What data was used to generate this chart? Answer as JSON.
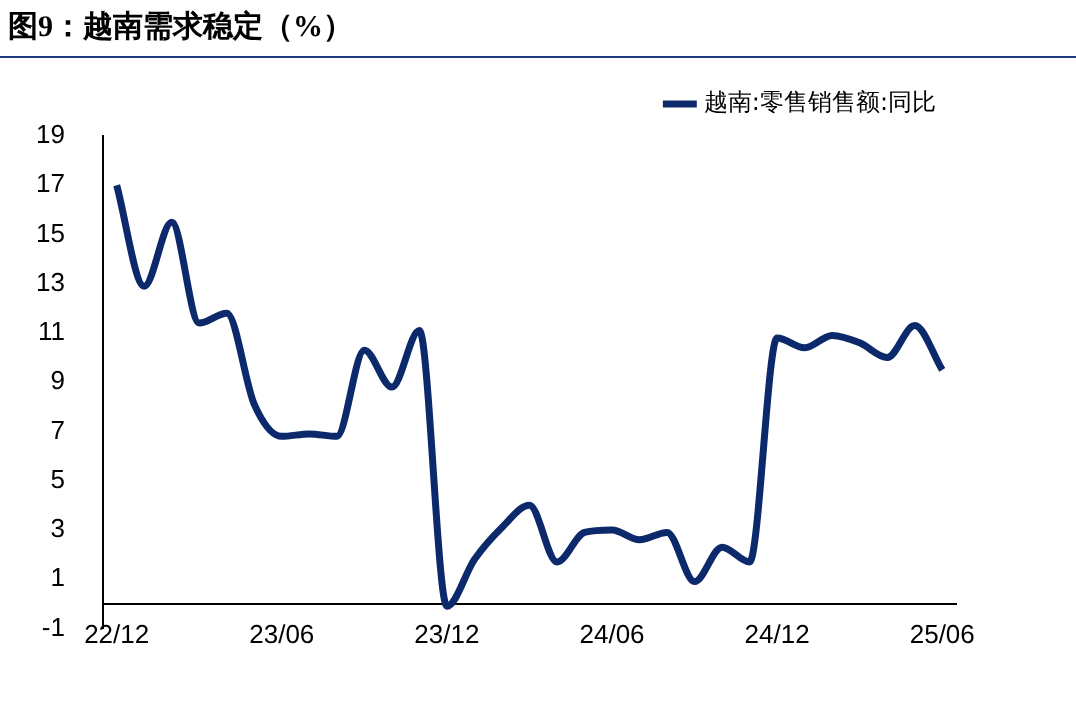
{
  "chart_data": {
    "type": "line",
    "title": "图9：越南需求稳定（%）",
    "categories": [
      "22/12",
      null,
      null,
      null,
      null,
      null,
      "23/06",
      null,
      null,
      null,
      null,
      null,
      "23/12",
      null,
      null,
      null,
      null,
      null,
      "24/06",
      null,
      null,
      null,
      null,
      null,
      "24/12",
      null,
      null,
      null,
      null,
      null,
      "25/06"
    ],
    "series": [
      {
        "name": "越南:零售销售额:同比",
        "color": "#0c2a6b",
        "values": [
          17.0,
          12.9,
          15.5,
          11.4,
          11.8,
          8.1,
          6.8,
          6.9,
          6.8,
          10.3,
          8.8,
          11.1,
          -0.1,
          1.8,
          3.1,
          4.0,
          1.7,
          2.9,
          3.0,
          2.6,
          2.9,
          0.9,
          2.3,
          1.7,
          10.8,
          10.4,
          10.9,
          10.6,
          10.0,
          11.3,
          9.5
        ]
      }
    ],
    "ylim": [
      -1,
      19
    ],
    "yticks": [
      -1,
      1,
      3,
      5,
      7,
      9,
      11,
      13,
      15,
      17,
      19
    ],
    "grid": false,
    "legend": "top right",
    "marker": "none",
    "line_style": "solid"
  }
}
